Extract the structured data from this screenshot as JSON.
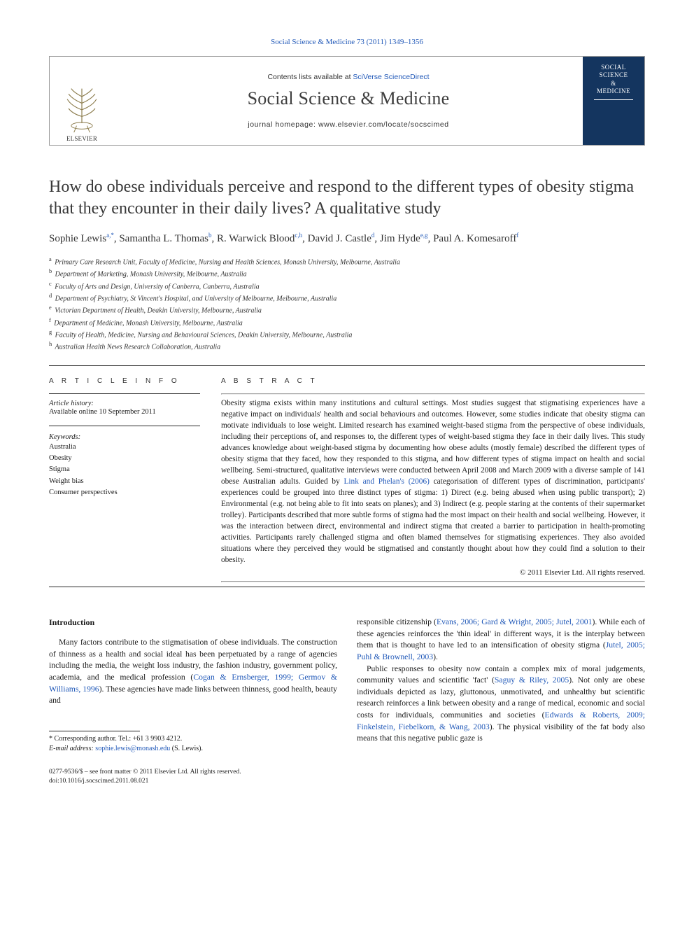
{
  "header": {
    "citation_prefix": "Social Science & Medicine 73 (2011) 1349",
    "citation_suffix": "1356"
  },
  "banner": {
    "contents_prefix": "Contents lists available at ",
    "contents_link": "SciVerse ScienceDirect",
    "journal": "Social Science & Medicine",
    "homepage_label": "journal homepage: ",
    "homepage_url": "www.elsevier.com/locate/socscimed",
    "publisher": "ELSEVIER",
    "cover_line1": "SOCIAL",
    "cover_line2": "SCIENCE",
    "cover_line3": "&",
    "cover_line4": "MEDICINE"
  },
  "title": "How do obese individuals perceive and respond to the different types of obesity stigma that they encounter in their daily lives? A qualitative study",
  "authors": [
    {
      "name": "Sophie Lewis",
      "sup": "a,*"
    },
    {
      "name": "Samantha L. Thomas",
      "sup": "b"
    },
    {
      "name": "R. Warwick Blood",
      "sup": "c,h"
    },
    {
      "name": "David J. Castle",
      "sup": "d"
    },
    {
      "name": "Jim Hyde",
      "sup": "e,g"
    },
    {
      "name": "Paul A. Komesaroff",
      "sup": "f"
    }
  ],
  "affiliations": [
    {
      "sup": "a",
      "text": "Primary Care Research Unit, Faculty of Medicine, Nursing and Health Sciences, Monash University, Melbourne, Australia"
    },
    {
      "sup": "b",
      "text": "Department of Marketing, Monash University, Melbourne, Australia"
    },
    {
      "sup": "c",
      "text": "Faculty of Arts and Design, University of Canberra, Canberra, Australia"
    },
    {
      "sup": "d",
      "text": "Department of Psychiatry, St Vincent's Hospital, and University of Melbourne, Melbourne, Australia"
    },
    {
      "sup": "e",
      "text": "Victorian Department of Health, Deakin University, Melbourne, Australia"
    },
    {
      "sup": "f",
      "text": "Department of Medicine, Monash University, Melbourne, Australia"
    },
    {
      "sup": "g",
      "text": "Faculty of Health, Medicine, Nursing and Behavioural Sciences, Deakin University, Melbourne, Australia"
    },
    {
      "sup": "h",
      "text": "Australian Health News Research Collaboration, Australia"
    }
  ],
  "info": {
    "section_label": "A R T I C L E   I N F O",
    "history_label": "Article history:",
    "history_text": "Available online 10 September 2011",
    "keywords_label": "Keywords:",
    "keywords": [
      "Australia",
      "Obesity",
      "Stigma",
      "Weight bias",
      "Consumer perspectives"
    ]
  },
  "abstract": {
    "section_label": "A B S T R A C T",
    "text_before_link": "Obesity stigma exists within many institutions and cultural settings. Most studies suggest that stigmatising experiences have a negative impact on individuals' health and social behaviours and outcomes. However, some studies indicate that obesity stigma can motivate individuals to lose weight. Limited research has examined weight-based stigma from the perspective of obese individuals, including their perceptions of, and responses to, the different types of weight-based stigma they face in their daily lives. This study advances knowledge about weight-based stigma by documenting how obese adults (mostly female) described the different types of obesity stigma that they faced, how they responded to this stigma, and how different types of stigma impact on health and social wellbeing. Semi-structured, qualitative interviews were conducted between April 2008 and March 2009 with a diverse sample of 141 obese Australian adults. Guided by ",
    "link_text": "Link and Phelan's (2006)",
    "text_after_link": " categorisation of different types of discrimination, participants' experiences could be grouped into three distinct types of stigma: 1) Direct (e.g. being abused when using public transport); 2) Environmental (e.g. not being able to fit into seats on planes); and 3) Indirect (e.g. people staring at the contents of their supermarket trolley). Participants described that more subtle forms of stigma had the most impact on their health and social wellbeing. However, it was the interaction between direct, environmental and indirect stigma that created a barrier to participation in health-promoting activities. Participants rarely challenged stigma and often blamed themselves for stigmatising experiences. They also avoided situations where they perceived they would be stigmatised and constantly thought about how they could find a solution to their obesity.",
    "copyright": "© 2011 Elsevier Ltd. All rights reserved."
  },
  "body": {
    "intro_heading": "Introduction",
    "left_p1_before": "Many factors contribute to the stigmatisation of obese individuals. The construction of thinness as a health and social ideal has been perpetuated by a range of agencies including the media, the weight loss industry, the fashion industry, government policy, academia, and the medical profession (",
    "left_link1": "Cogan & Ernsberger, 1999; Germov & Williams, 1996",
    "left_p1_after": "). These agencies have made links between thinness, good health, beauty and",
    "right_p1_before": "responsible citizenship (",
    "right_link1": "Evans, 2006; Gard & Wright, 2005; Jutel, 2001",
    "right_p1_mid1": "). While each of these agencies reinforces the 'thin ideal' in different ways, it is the interplay between them that is thought to have led to an intensification of obesity stigma (",
    "right_link2": "Jutel, 2005; Puhl & Brownell, 2003",
    "right_p1_after": ").",
    "right_p2_before": "Public responses to obesity now contain a complex mix of moral judgements, community values and scientific 'fact' (",
    "right_link3": "Saguy & Riley, 2005",
    "right_p2_mid1": "). Not only are obese individuals depicted as lazy, gluttonous, unmotivated, and unhealthy but scientific research reinforces a link between obesity and a range of medical, economic and social costs for individuals, communities and societies (",
    "right_link4": "Edwards & Roberts, 2009; Finkelstein, Fiebelkorn, & Wang, 2003",
    "right_p2_after": "). The physical visibility of the fat body also means that this negative public gaze is"
  },
  "footnotes": {
    "corresponding": "* Corresponding author. Tel.: +61 3 9903 4212.",
    "email_label": "E-mail address: ",
    "email": "sophie.lewis@monash.edu",
    "email_suffix": " (S. Lewis)."
  },
  "bottom": {
    "line1": "0277-9536/$ – see front matter © 2011 Elsevier Ltd. All rights reserved.",
    "line2": "doi:10.1016/j.socscimed.2011.08.021"
  },
  "colors": {
    "link": "#2058b8",
    "text": "#1a1a1a",
    "cover_bg": "#14355f"
  }
}
